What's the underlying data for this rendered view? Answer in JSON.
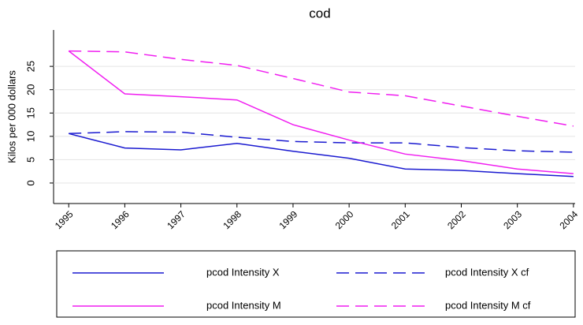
{
  "chart_data": {
    "type": "line",
    "title": "cod",
    "y_label": "Kilos per 000 dollars",
    "x": [
      1995,
      1996,
      1997,
      1998,
      1999,
      2000,
      2001,
      2002,
      2003,
      2004
    ],
    "xlim": [
      1994.73,
      2004.03
    ],
    "xticks": [
      1995,
      1996,
      1997,
      1998,
      1999,
      2000,
      2001,
      2002,
      2003,
      2004
    ],
    "ylim": [
      -4.4,
      32.8
    ],
    "yticks": [
      0,
      5,
      10,
      15,
      20,
      25
    ],
    "grid": true,
    "series": [
      {
        "name": "pcod Intensity X",
        "color": "#1a1ad0",
        "line_style": "solid",
        "values": [
          10.6,
          7.5,
          7.1,
          8.5,
          6.8,
          5.3,
          3.0,
          2.7,
          2.0,
          1.4
        ]
      },
      {
        "name": "pcod Intensity X cf",
        "color": "#1a1ad0",
        "line_style": "dashed",
        "values": [
          10.6,
          11.0,
          10.9,
          9.8,
          8.9,
          8.6,
          8.6,
          7.6,
          6.9,
          6.6
        ]
      },
      {
        "name": "pcod Intensity M",
        "color": "#f01ef0",
        "line_style": "solid",
        "values": [
          28.3,
          19.1,
          18.5,
          17.8,
          12.5,
          9.2,
          6.2,
          4.8,
          3.0,
          2.0
        ]
      },
      {
        "name": "pcod Intensity M cf",
        "color": "#f01ef0",
        "line_style": "dashed",
        "values": [
          28.3,
          28.1,
          26.5,
          25.2,
          22.4,
          19.5,
          18.7,
          16.5,
          14.3,
          12.2
        ]
      }
    ]
  }
}
